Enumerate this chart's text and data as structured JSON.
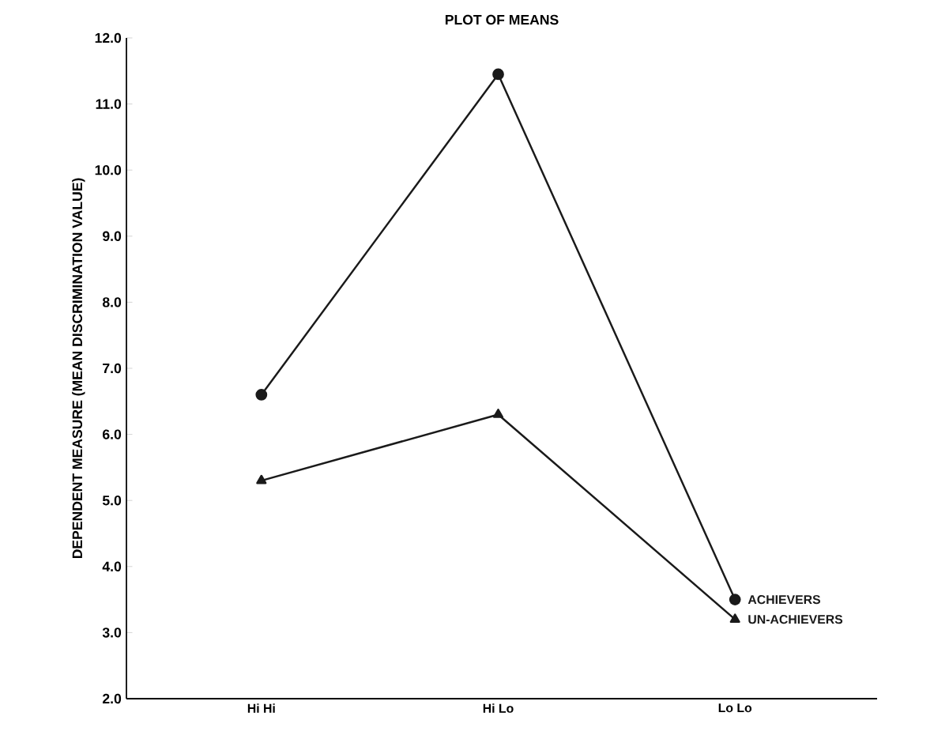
{
  "chart_data": {
    "type": "line",
    "title": "PLOT OF MEANS",
    "ylabel": "DEPENDENT MEASURE  (MEAN DISCRIMINATION VALUE)",
    "categories": [
      "Hi Hi",
      "Hi Lo",
      "Lo Lo"
    ],
    "series": [
      {
        "name": "ACHIEVERS",
        "color": "#1a1a1a",
        "marker": "circle",
        "values": [
          6.6,
          11.45,
          3.5
        ]
      },
      {
        "name": "UN-ACHIEVERS",
        "color": "#1a1a1a",
        "marker": "triangle",
        "values": [
          5.3,
          6.3,
          3.2
        ]
      }
    ],
    "ylim": [
      2,
      12
    ],
    "yticks": [
      {
        "value": 2,
        "label": "2.0"
      },
      {
        "value": 3,
        "label": "3.0"
      },
      {
        "value": 4,
        "label": "4.0"
      },
      {
        "value": 5,
        "label": "5.0"
      },
      {
        "value": 6,
        "label": "6.0"
      },
      {
        "value": 7,
        "label": "7.0"
      },
      {
        "value": 8,
        "label": "8.0"
      },
      {
        "value": 9,
        "label": "9.0"
      },
      {
        "value": 10,
        "label": "10.0"
      },
      {
        "value": 11,
        "label": "11.0"
      },
      {
        "value": 12,
        "label": "12.0"
      }
    ],
    "grid": false,
    "legend": "right",
    "line_style": "solid"
  }
}
